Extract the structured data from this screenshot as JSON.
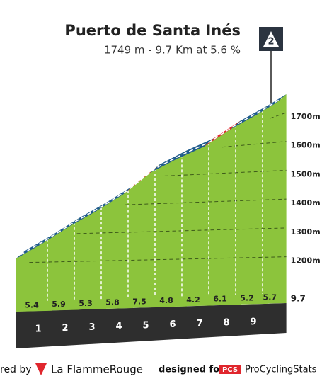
{
  "chart_data": {
    "type": "climb-profile",
    "title": "Puerto de Santa Inés",
    "subtitle": "1749 m - 9.7 Km at 5.6 %",
    "category": "2",
    "values": [
      5.4,
      5.9,
      5.3,
      5.8,
      7.5,
      4.8,
      4.2,
      6.1,
      5.2,
      5.7
    ],
    "colors": [
      "#1f5b8c",
      "#1f5b8c",
      "#1f5b8c",
      "#1f5b8c",
      "#e0262d",
      "#1f5b8c",
      "#1f5b8c",
      "#e0262d",
      "#1f5b8c",
      "#1f5b8c"
    ],
    "fill": "#8cc43c",
    "xlim": [
      0,
      9.7
    ],
    "xticks": [
      1,
      2,
      3,
      4,
      5,
      6,
      7,
      8,
      9
    ],
    "ylim": [
      1150,
      1749
    ],
    "yticks": [
      {
        "value": 1200,
        "label": "1200m"
      },
      {
        "value": 1300,
        "label": "1300m"
      },
      {
        "value": 1400,
        "label": "1400m"
      },
      {
        "value": 1500,
        "label": "1500m"
      },
      {
        "value": 1600,
        "label": "1600m"
      },
      {
        "value": 1700,
        "label": "1700m"
      }
    ],
    "grid": true
  },
  "footer": {
    "powered": "red by",
    "brand": "La FlammeRouge",
    "designed": "designed for",
    "pcs": "PCS",
    "site": "ProCyclingStats"
  }
}
